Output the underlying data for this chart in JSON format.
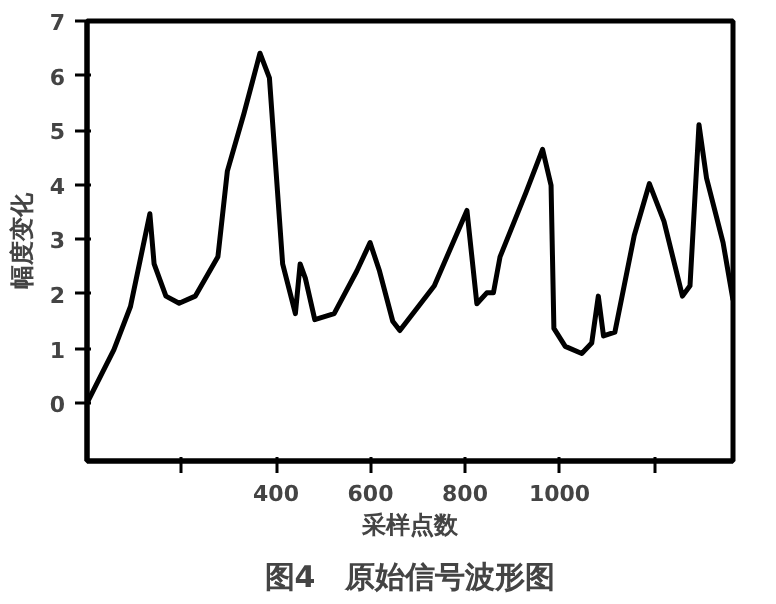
{
  "chart_data": {
    "type": "line",
    "title": "图4　原始信号波形图",
    "xlabel": "采样点数",
    "ylabel": "幅度变化",
    "x": [
      0,
      57,
      92,
      133,
      142,
      167,
      195,
      229,
      277,
      297,
      332,
      366,
      386,
      414,
      441,
      451,
      462,
      482,
      523,
      571,
      599,
      619,
      647,
      662,
      735,
      804,
      825,
      846,
      860,
      874,
      929,
      964,
      982,
      988,
      1012,
      1047,
      1068,
      1082,
      1093,
      1117,
      1158,
      1190,
      1221,
      1260,
      1276,
      1295,
      1311,
      1346,
      1367
    ],
    "series": [
      {
        "color": "#000000",
        "values": [
          0,
          0.98,
          1.77,
          3.47,
          2.55,
          1.96,
          1.83,
          1.96,
          2.68,
          4.25,
          5.3,
          6.41,
          5.96,
          2.55,
          1.64,
          2.55,
          2.29,
          1.53,
          1.64,
          2.42,
          2.94,
          2.42,
          1.5,
          1.33,
          2.15,
          3.53,
          1.82,
          2.02,
          2.02,
          2.68,
          3.86,
          4.65,
          3.99,
          1.37,
          1.04,
          0.91,
          1.1,
          1.96,
          1.23,
          1.3,
          3.07,
          4.02,
          3.33,
          1.96,
          2.15,
          5.1,
          4.12,
          2.94,
          1.89
        ]
      }
    ],
    "xlim": [
      0,
      1367
    ],
    "ylim": [
      -1.06,
      7
    ],
    "xticks": [
      {
        "value": 200,
        "label": null
      },
      400,
      600,
      800,
      1000,
      {
        "value": 1200,
        "label": null
      }
    ],
    "yticks": [
      0,
      1,
      2,
      3,
      4,
      5,
      6,
      7
    ],
    "grid": false,
    "marker": "none",
    "line_style": "solid"
  }
}
